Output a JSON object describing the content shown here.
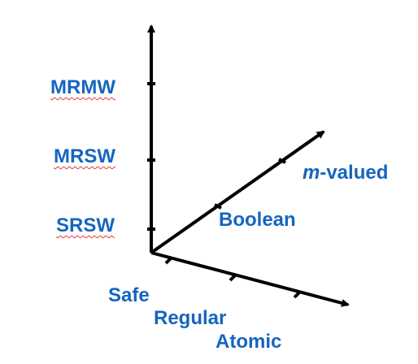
{
  "vertical_axis": {
    "ticks": [
      "SRSW",
      "MRSW",
      "MRMW"
    ]
  },
  "diagonal_axis": {
    "ticks": [
      "Boolean"
    ],
    "top_label_italic": "m",
    "top_label_rest": "-valued"
  },
  "horizontal_axis": {
    "ticks": [
      "Safe",
      "Regular",
      "Atomic"
    ]
  },
  "colors": {
    "axis": "#000000",
    "label": "#1565c0",
    "spellcheck_underline": "#e53935"
  }
}
